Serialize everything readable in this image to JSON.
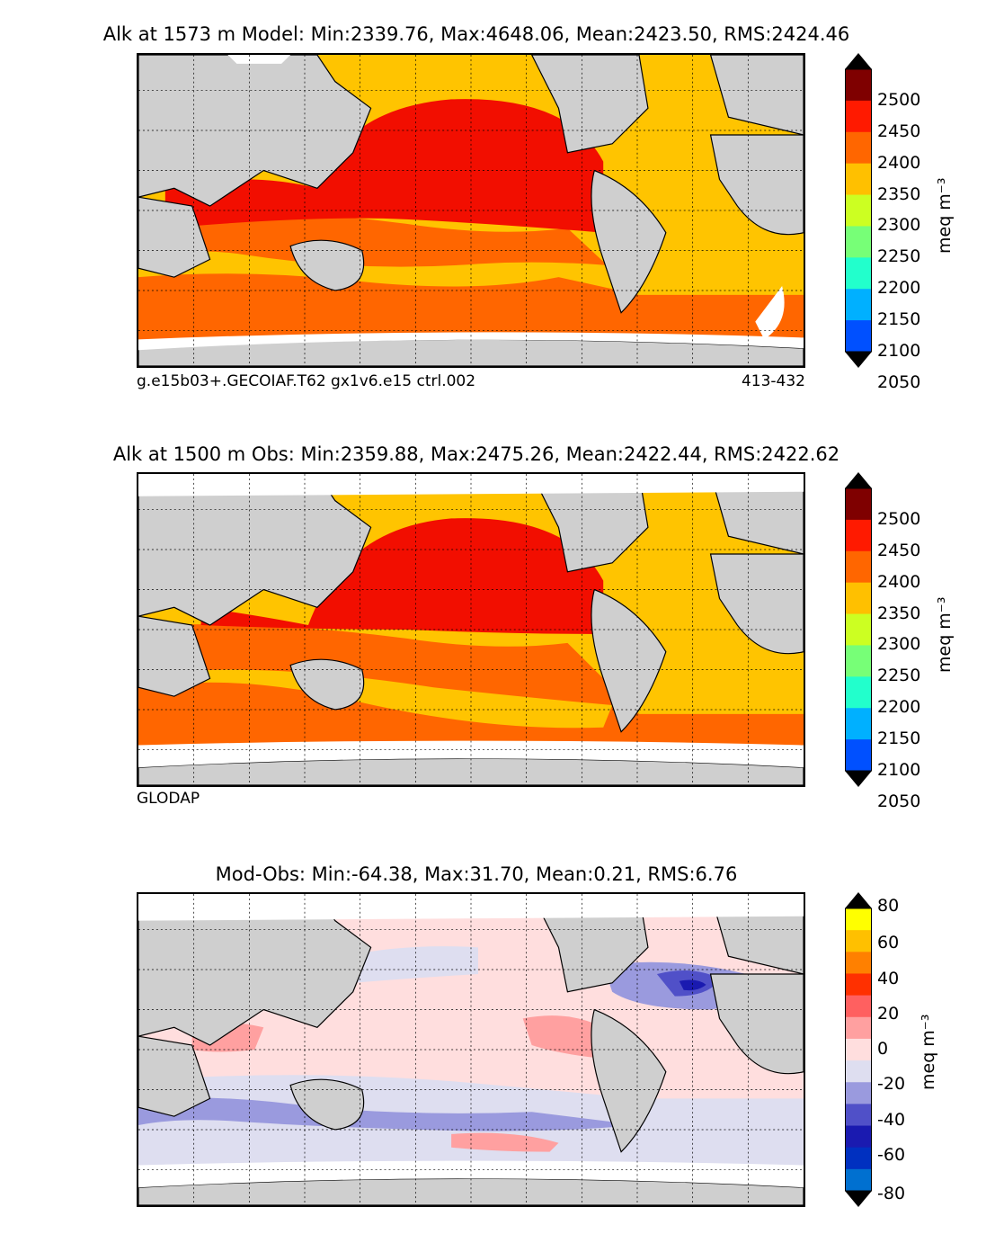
{
  "panels": [
    {
      "title": "Alk at 1573 m Model: Min:2339.76, Max:4648.06, Mean:2423.50, RMS:2424.46",
      "footer_left": "g.e15b03+.GECOIAF.T62 gx1v6.e15 ctrl.002",
      "footer_right": "413-432",
      "colorbar": {
        "unit": "meq m⁻³",
        "ticks": [
          "2500",
          "2450",
          "2400",
          "2350",
          "2300",
          "2250",
          "2200",
          "2150",
          "2100",
          "2050"
        ],
        "colors": [
          "#7f0000",
          "#ff1a00",
          "#ff6600",
          "#ffc000",
          "#ccff22",
          "#77ff77",
          "#22ffcc",
          "#00b0ff",
          "#0050ff",
          "#0000ff",
          "#00007f"
        ]
      }
    },
    {
      "title": "Alk at 1500 m Obs: Min:2359.88, Max:2475.26, Mean:2422.44, RMS:2422.62",
      "footer_left": "GLODAP",
      "footer_right": "",
      "colorbar": {
        "unit": "meq m⁻³",
        "ticks": [
          "2500",
          "2450",
          "2400",
          "2350",
          "2300",
          "2250",
          "2200",
          "2150",
          "2100",
          "2050"
        ],
        "colors": [
          "#7f0000",
          "#ff1a00",
          "#ff6600",
          "#ffc000",
          "#ccff22",
          "#77ff77",
          "#22ffcc",
          "#00b0ff",
          "#0050ff",
          "#0000ff",
          "#00007f"
        ]
      }
    },
    {
      "title": "Mod-Obs: Min:-64.38, Max:31.70, Mean:0.21, RMS:6.76",
      "footer_left": "",
      "footer_right": "",
      "colorbar": {
        "unit": "meq m⁻³",
        "ticks": [
          "80",
          "60",
          "40",
          "20",
          "0",
          "-20",
          "-40",
          "-60",
          "-80"
        ],
        "colors": [
          "#ffff00",
          "#ffc000",
          "#ff8000",
          "#ff3000",
          "#ff6060",
          "#ffa0a0",
          "#ffdede",
          "#dedef0",
          "#9a9ade",
          "#5050c8",
          "#1a1ab0",
          "#0030c0",
          "#0070d0",
          "#00b0e0",
          "#00ffff"
        ]
      }
    }
  ],
  "map_colors": {
    "land": "#cfcfcf",
    "ice": "#ffffff",
    "model_pacific": "#f20e00",
    "model_south": "#ff6600",
    "model_atlantic": "#ffc400",
    "obs_pacific": "#f20e00",
    "obs_south": "#ff6600",
    "obs_atlantic": "#ffc400",
    "diff_pos_light": "#ffdede",
    "diff_pos_mid": "#ffa0a0",
    "diff_neg_light": "#dedef0",
    "diff_neg_mid": "#9a9ade",
    "diff_neg_dark": "#1a1ab0"
  }
}
